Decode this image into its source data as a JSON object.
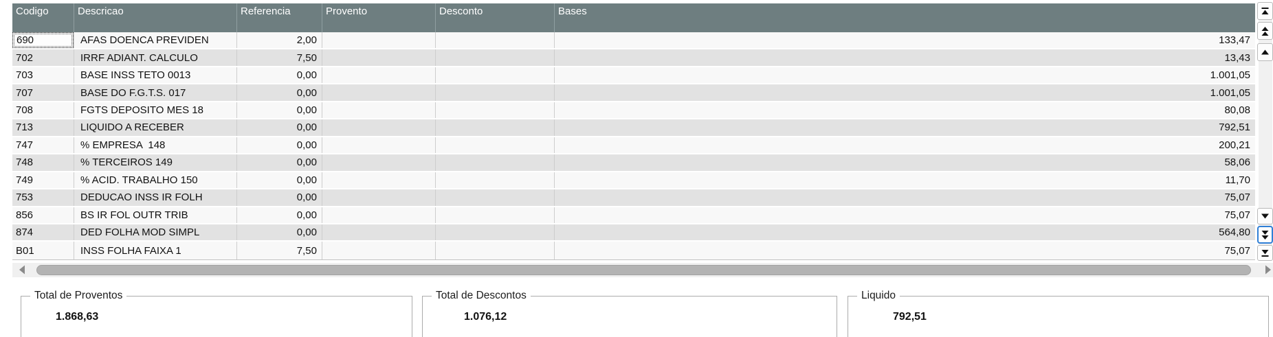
{
  "table": {
    "columns": [
      {
        "key": "codigo",
        "label": "Codigo"
      },
      {
        "key": "descricao",
        "label": "Descricao"
      },
      {
        "key": "referencia",
        "label": "Referencia"
      },
      {
        "key": "provento",
        "label": "Provento"
      },
      {
        "key": "desconto",
        "label": "Desconto"
      },
      {
        "key": "bases",
        "label": "Bases"
      }
    ],
    "rows": [
      {
        "codigo": "690",
        "descricao": "AFAS DOENCA PREVIDEN",
        "referencia": "2,00",
        "provento": "",
        "desconto": "",
        "bases": "133,47"
      },
      {
        "codigo": "702",
        "descricao": "IRRF ADIANT. CALCULO",
        "referencia": "7,50",
        "provento": "",
        "desconto": "",
        "bases": "13,43"
      },
      {
        "codigo": "703",
        "descricao": "BASE INSS TETO 0013",
        "referencia": "0,00",
        "provento": "",
        "desconto": "",
        "bases": "1.001,05"
      },
      {
        "codigo": "707",
        "descricao": "BASE DO F.G.T.S. 017",
        "referencia": "0,00",
        "provento": "",
        "desconto": "",
        "bases": "1.001,05"
      },
      {
        "codigo": "708",
        "descricao": "FGTS DEPOSITO MES 18",
        "referencia": "0,00",
        "provento": "",
        "desconto": "",
        "bases": "80,08"
      },
      {
        "codigo": "713",
        "descricao": "LIQUIDO A RECEBER",
        "referencia": "0,00",
        "provento": "",
        "desconto": "",
        "bases": "792,51"
      },
      {
        "codigo": "747",
        "descricao": "% EMPRESA  148",
        "referencia": "0,00",
        "provento": "",
        "desconto": "",
        "bases": "200,21"
      },
      {
        "codigo": "748",
        "descricao": "% TERCEIROS 149",
        "referencia": "0,00",
        "provento": "",
        "desconto": "",
        "bases": "58,06"
      },
      {
        "codigo": "749",
        "descricao": "% ACID. TRABALHO 150",
        "referencia": "0,00",
        "provento": "",
        "desconto": "",
        "bases": "11,70"
      },
      {
        "codigo": "753",
        "descricao": "DEDUCAO INSS IR FOLH",
        "referencia": "0,00",
        "provento": "",
        "desconto": "",
        "bases": "75,07"
      },
      {
        "codigo": "856",
        "descricao": "BS IR FOL OUTR TRIB",
        "referencia": "0,00",
        "provento": "",
        "desconto": "",
        "bases": "75,07"
      },
      {
        "codigo": "874",
        "descricao": "DED FOLHA MOD SIMPL",
        "referencia": "0,00",
        "provento": "",
        "desconto": "",
        "bases": "564,80"
      },
      {
        "codigo": "B01",
        "descricao": "INSS FOLHA FAIXA 1",
        "referencia": "7,50",
        "provento": "",
        "desconto": "",
        "bases": "75,07"
      }
    ],
    "focused_cell": {
      "row_index": 0,
      "column": "codigo"
    },
    "numeric_columns": [
      "referencia",
      "provento",
      "desconto",
      "bases"
    ]
  },
  "scrollbars": {
    "vertical_buttons": [
      {
        "icon": "first-record-icon"
      },
      {
        "icon": "page-up-icon"
      },
      {
        "icon": "row-up-icon"
      },
      {
        "icon": "row-down-icon"
      },
      {
        "icon": "page-down-icon",
        "focused": true
      },
      {
        "icon": "last-record-icon"
      }
    ],
    "horizontal": {
      "left_icon": "scroll-left-icon",
      "right_icon": "scroll-right-icon"
    }
  },
  "totals": {
    "proventos": {
      "label": "Total de Proventos",
      "value": "1.868,63"
    },
    "descontos": {
      "label": "Total de Descontos",
      "value": "1.076,12"
    },
    "liquido": {
      "label": "Liquido",
      "value": "792,51"
    }
  },
  "colors": {
    "header_bg": "#6e7e80",
    "row_light": "#f8f8f8",
    "row_dark": "#e2e2e2",
    "focus_ring": "#2f7fd6",
    "scroll_thumb": "#b3b3b3"
  }
}
